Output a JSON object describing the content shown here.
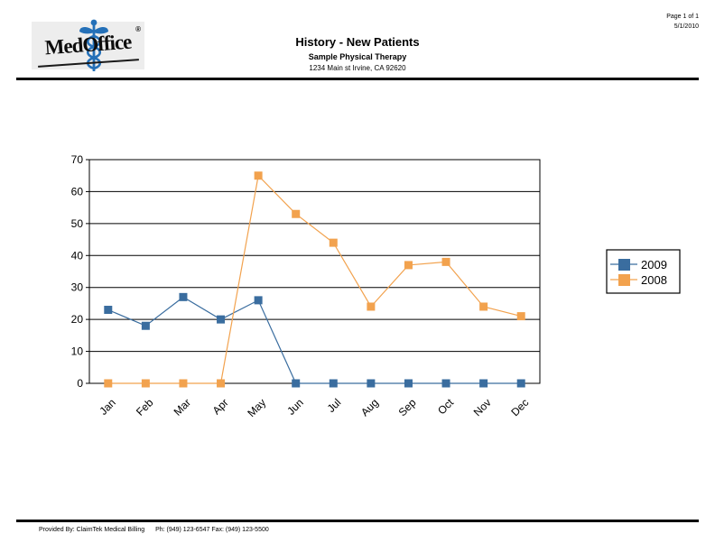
{
  "page": {
    "page_info": "Page 1 of 1",
    "date": "5/1/2010"
  },
  "header": {
    "logo_text": "MedOffice",
    "registered_mark": "®",
    "title": "History - New Patients",
    "subtitle": "Sample Physical Therapy",
    "address": "1234 Main st Irvine, CA 92620"
  },
  "footer": {
    "provided_by": "Provided By: ClaimTek Medical Billing",
    "phone_fax": "Ph: (949) 123-6547 Fax: (949) 123-5500"
  },
  "colors": {
    "series_2009": "#3A6D9F",
    "series_2008": "#F2A24E",
    "grid": "#000000",
    "logo_caduceus": "#2470B8"
  },
  "chart_data": {
    "type": "line",
    "title": "History - New Patients",
    "categories": [
      "Jan",
      "Feb",
      "Mar",
      "Apr",
      "May",
      "Jun",
      "Jul",
      "Aug",
      "Sep",
      "Oct",
      "Nov",
      "Dec"
    ],
    "series": [
      {
        "name": "2009",
        "color": "#3A6D9F",
        "values": [
          23,
          18,
          27,
          20,
          26,
          0,
          0,
          0,
          0,
          0,
          0,
          0
        ]
      },
      {
        "name": "2008",
        "color": "#F2A24E",
        "values": [
          0,
          0,
          0,
          0,
          65,
          53,
          44,
          24,
          37,
          38,
          24,
          21
        ]
      }
    ],
    "xlabel": "",
    "ylabel": "",
    "ylim": [
      0,
      70
    ],
    "ytick_step": 10,
    "grid": true,
    "legend_position": "right"
  }
}
